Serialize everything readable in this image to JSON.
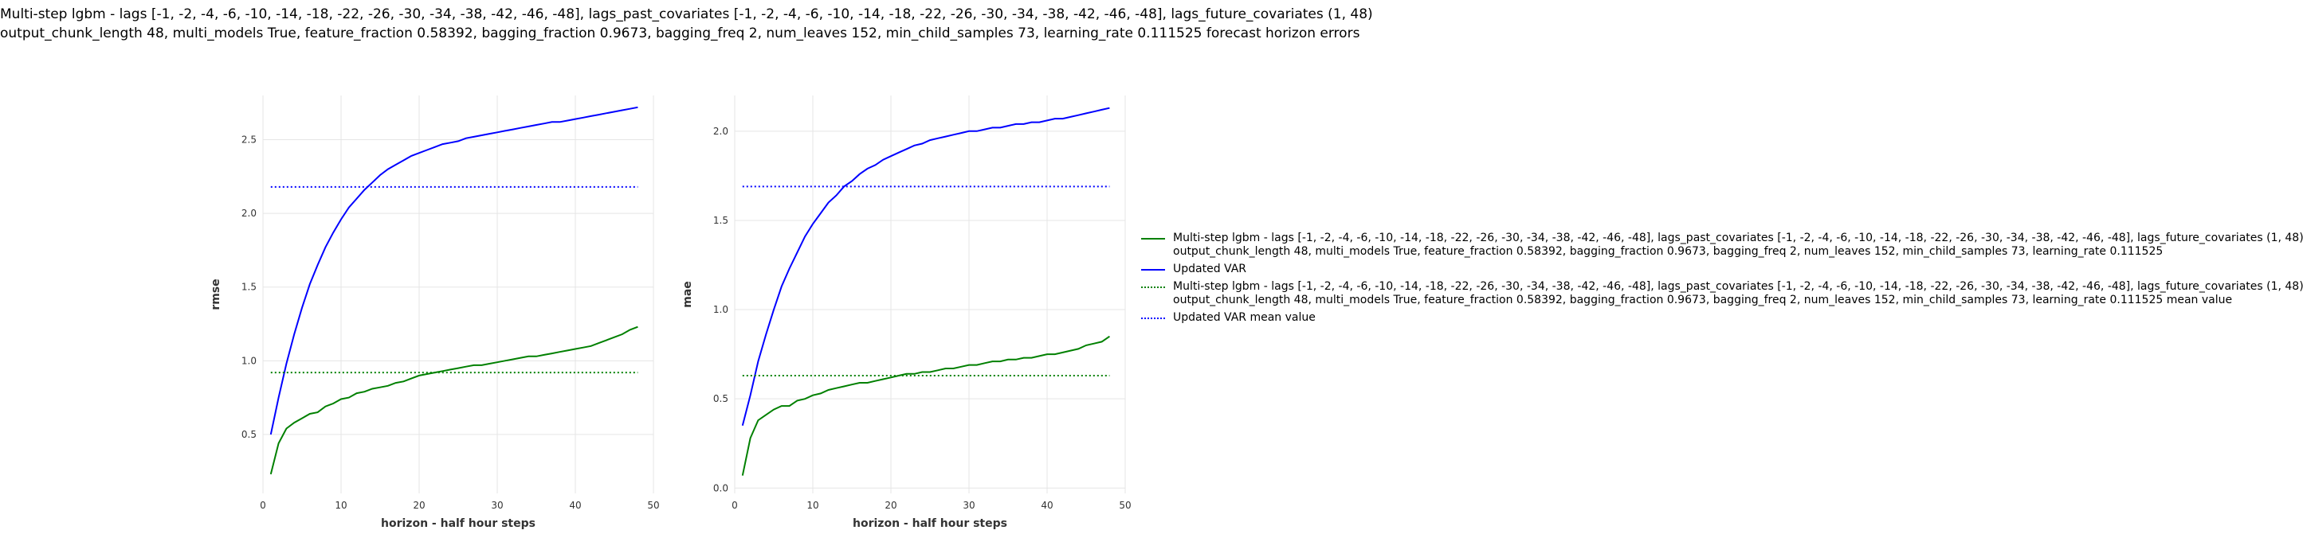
{
  "title_lines": [
    "Multi-step lgbm - lags [-1, -2, -4, -6, -10, -14, -18, -22, -26, -30, -34, -38, -42, -46, -48], lags_past_covariates [-1, -2, -4, -6, -10, -14, -18, -22, -26, -30, -34, -38, -42, -46, -48], lags_future_covariates (1, 48)",
    "output_chunk_length 48, multi_models True, feature_fraction 0.58392, bagging_fraction 0.9673, bagging_freq 2, num_leaves 152, min_child_samples 73, learning_rate 0.111525 forecast horizon errors"
  ],
  "colors": {
    "lgbm": "#008000",
    "var": "#0000ff",
    "grid": "#e5e5e5"
  },
  "legend": [
    {
      "lines": [
        "Multi-step lgbm - lags [-1, -2, -4, -6, -10, -14, -18, -22, -26, -30, -34, -38, -42, -46, -48], lags_past_covariates [-1, -2, -4, -6, -10, -14, -18, -22, -26, -30, -34, -38, -42, -46, -48], lags_future_covariates (1, 48)",
        "output_chunk_length 48, multi_models True, feature_fraction 0.58392, bagging_fraction 0.9673, bagging_freq 2, num_leaves 152, min_child_samples 73, learning_rate 0.111525"
      ],
      "color": "#008000",
      "style": "solid"
    },
    {
      "lines": [
        "Updated VAR"
      ],
      "color": "#0000ff",
      "style": "solid"
    },
    {
      "lines": [
        "Multi-step lgbm - lags [-1, -2, -4, -6, -10, -14, -18, -22, -26, -30, -34, -38, -42, -46, -48], lags_past_covariates [-1, -2, -4, -6, -10, -14, -18, -22, -26, -30, -34, -38, -42, -46, -48], lags_future_covariates (1, 48)",
        "output_chunk_length 48, multi_models True, feature_fraction 0.58392, bagging_fraction 0.9673, bagging_freq 2, num_leaves 152, min_child_samples 73, learning_rate 0.111525 mean value"
      ],
      "color": "#008000",
      "style": "dotted"
    },
    {
      "lines": [
        "Updated VAR mean value"
      ],
      "color": "#0000ff",
      "style": "dotted"
    }
  ],
  "chart_data": [
    {
      "type": "line",
      "xlabel": "horizon - half hour steps",
      "ylabel": "rmse",
      "xlim": [
        0,
        50
      ],
      "ylim": [
        0.1,
        2.8
      ],
      "xticks": [
        0,
        10,
        20,
        30,
        40,
        50
      ],
      "yticks": [
        0.5,
        1.0,
        1.5,
        2.0,
        2.5
      ],
      "ytick_labels": [
        "0.5",
        "1.0",
        "1.5",
        "2.0",
        "2.5"
      ],
      "x": [
        1,
        2,
        3,
        4,
        5,
        6,
        7,
        8,
        9,
        10,
        11,
        12,
        13,
        14,
        15,
        16,
        17,
        18,
        19,
        20,
        21,
        22,
        23,
        24,
        25,
        26,
        27,
        28,
        29,
        30,
        31,
        32,
        33,
        34,
        35,
        36,
        37,
        38,
        39,
        40,
        41,
        42,
        43,
        44,
        45,
        46,
        47,
        48
      ],
      "series": [
        {
          "name": "lgbm",
          "color": "#008000",
          "style": "solid",
          "values": [
            0.23,
            0.44,
            0.54,
            0.58,
            0.61,
            0.64,
            0.65,
            0.69,
            0.71,
            0.74,
            0.75,
            0.78,
            0.79,
            0.81,
            0.82,
            0.83,
            0.85,
            0.86,
            0.88,
            0.9,
            0.91,
            0.92,
            0.93,
            0.94,
            0.95,
            0.96,
            0.97,
            0.97,
            0.98,
            0.99,
            1.0,
            1.01,
            1.02,
            1.03,
            1.03,
            1.04,
            1.05,
            1.06,
            1.07,
            1.08,
            1.09,
            1.1,
            1.12,
            1.14,
            1.16,
            1.18,
            1.21,
            1.23
          ]
        },
        {
          "name": "Updated VAR",
          "color": "#0000ff",
          "style": "solid",
          "values": [
            0.5,
            0.75,
            0.98,
            1.18,
            1.36,
            1.52,
            1.65,
            1.77,
            1.87,
            1.96,
            2.04,
            2.1,
            2.16,
            2.21,
            2.26,
            2.3,
            2.33,
            2.36,
            2.39,
            2.41,
            2.43,
            2.45,
            2.47,
            2.48,
            2.49,
            2.51,
            2.52,
            2.53,
            2.54,
            2.55,
            2.56,
            2.57,
            2.58,
            2.59,
            2.6,
            2.61,
            2.62,
            2.62,
            2.63,
            2.64,
            2.65,
            2.66,
            2.67,
            2.68,
            2.69,
            2.7,
            2.71,
            2.72
          ]
        },
        {
          "name": "lgbm mean value",
          "color": "#008000",
          "style": "dotted",
          "values": [
            0.92,
            0.92
          ],
          "x": [
            1,
            48
          ]
        },
        {
          "name": "Updated VAR mean value",
          "color": "#0000ff",
          "style": "dotted",
          "values": [
            2.18,
            2.18
          ],
          "x": [
            1,
            48
          ]
        }
      ]
    },
    {
      "type": "line",
      "xlabel": "horizon - half hour steps",
      "ylabel": "mae",
      "xlim": [
        0,
        50
      ],
      "ylim": [
        -0.03,
        2.2
      ],
      "xticks": [
        0,
        10,
        20,
        30,
        40,
        50
      ],
      "yticks": [
        0.0,
        0.5,
        1.0,
        1.5,
        2.0
      ],
      "ytick_labels": [
        "0.0",
        "0.5",
        "1.0",
        "1.5",
        "2.0"
      ],
      "x": [
        1,
        2,
        3,
        4,
        5,
        6,
        7,
        8,
        9,
        10,
        11,
        12,
        13,
        14,
        15,
        16,
        17,
        18,
        19,
        20,
        21,
        22,
        23,
        24,
        25,
        26,
        27,
        28,
        29,
        30,
        31,
        32,
        33,
        34,
        35,
        36,
        37,
        38,
        39,
        40,
        41,
        42,
        43,
        44,
        45,
        46,
        47,
        48
      ],
      "series": [
        {
          "name": "lgbm",
          "color": "#008000",
          "style": "solid",
          "values": [
            0.07,
            0.28,
            0.38,
            0.41,
            0.44,
            0.46,
            0.46,
            0.49,
            0.5,
            0.52,
            0.53,
            0.55,
            0.56,
            0.57,
            0.58,
            0.59,
            0.59,
            0.6,
            0.61,
            0.62,
            0.63,
            0.64,
            0.64,
            0.65,
            0.65,
            0.66,
            0.67,
            0.67,
            0.68,
            0.69,
            0.69,
            0.7,
            0.71,
            0.71,
            0.72,
            0.72,
            0.73,
            0.73,
            0.74,
            0.75,
            0.75,
            0.76,
            0.77,
            0.78,
            0.8,
            0.81,
            0.82,
            0.85
          ]
        },
        {
          "name": "Updated VAR",
          "color": "#0000ff",
          "style": "solid",
          "values": [
            0.35,
            0.52,
            0.71,
            0.86,
            1.0,
            1.13,
            1.23,
            1.32,
            1.41,
            1.48,
            1.54,
            1.6,
            1.64,
            1.69,
            1.72,
            1.76,
            1.79,
            1.81,
            1.84,
            1.86,
            1.88,
            1.9,
            1.92,
            1.93,
            1.95,
            1.96,
            1.97,
            1.98,
            1.99,
            2.0,
            2.0,
            2.01,
            2.02,
            2.02,
            2.03,
            2.04,
            2.04,
            2.05,
            2.05,
            2.06,
            2.07,
            2.07,
            2.08,
            2.09,
            2.1,
            2.11,
            2.12,
            2.13
          ]
        },
        {
          "name": "lgbm mean value",
          "color": "#008000",
          "style": "dotted",
          "values": [
            0.63,
            0.63
          ],
          "x": [
            1,
            48
          ]
        },
        {
          "name": "Updated VAR mean value",
          "color": "#0000ff",
          "style": "dotted",
          "values": [
            1.69,
            1.69
          ],
          "x": [
            1,
            48
          ]
        }
      ]
    }
  ]
}
